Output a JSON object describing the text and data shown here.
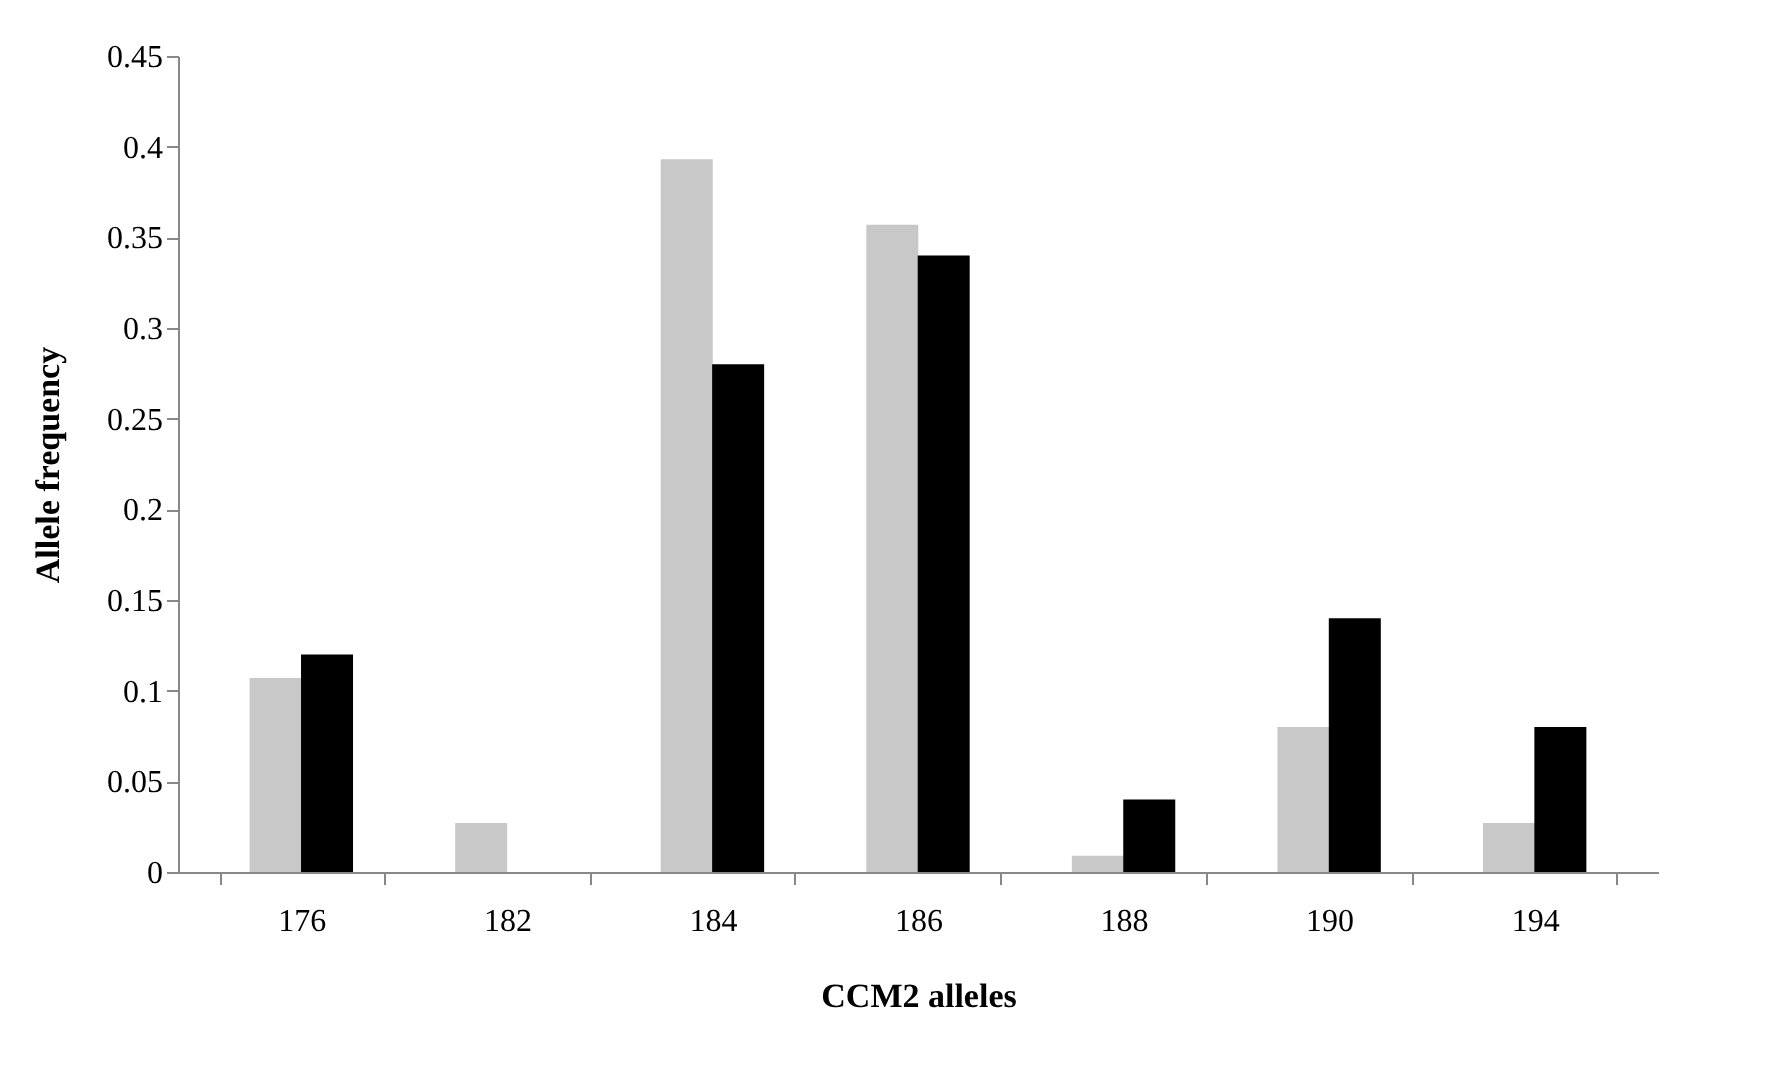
{
  "chart_data": {
    "type": "bar",
    "xlabel": "CCM2 alleles",
    "ylabel": "Allele frequency",
    "categories": [
      "176",
      "182",
      "184",
      "186",
      "188",
      "190",
      "194"
    ],
    "series": [
      {
        "color": "#c8c8c8",
        "values": [
          0.107,
          0.027,
          0.393,
          0.357,
          0.009,
          0.08,
          0.027
        ]
      },
      {
        "color": "#000000",
        "values": [
          0.12,
          0,
          0.28,
          0.34,
          0.04,
          0.14,
          0.08
        ]
      }
    ],
    "ylim": [
      0,
      0.45
    ],
    "yticks": [
      0,
      0.05,
      0.1,
      0.15,
      0.2,
      0.25,
      0.3,
      0.35,
      0.4,
      0.45
    ],
    "grid": false,
    "legend": false
  }
}
